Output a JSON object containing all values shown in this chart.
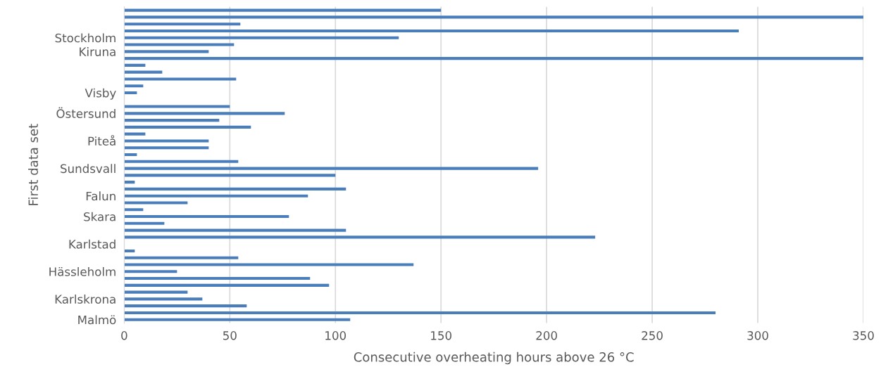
{
  "chart_data": {
    "type": "bar",
    "orientation": "horizontal",
    "xlabel": "Consecutive overheating hours above 26 °C",
    "ylabel": "First data set",
    "categories": [
      null,
      null,
      null,
      null,
      "Stockholm",
      null,
      "Kiruna",
      null,
      null,
      null,
      null,
      null,
      "Visby",
      null,
      null,
      "Östersund",
      null,
      null,
      null,
      "Piteå",
      null,
      null,
      null,
      "Sundsvall",
      null,
      null,
      null,
      "Falun",
      null,
      null,
      "Skara",
      null,
      null,
      null,
      "Karlstad",
      null,
      null,
      null,
      "Hässleholm",
      null,
      null,
      null,
      "Karlskrona",
      null,
      null,
      "Malmö"
    ],
    "values": [
      150,
      350,
      55,
      291,
      130,
      52,
      40,
      350,
      10,
      18,
      53,
      9,
      6,
      null,
      50,
      76,
      45,
      60,
      10,
      40,
      40,
      6,
      54,
      196,
      100,
      5,
      105,
      87,
      30,
      9,
      78,
      19,
      105,
      223,
      null,
      5,
      54,
      137,
      25,
      88,
      97,
      30,
      37,
      58,
      280,
      107
    ],
    "color": "#4a7ebb",
    "xlim": [
      0,
      350
    ],
    "xticks": [
      0,
      50,
      100,
      150,
      200,
      250,
      300,
      350
    ],
    "grid": "x"
  }
}
